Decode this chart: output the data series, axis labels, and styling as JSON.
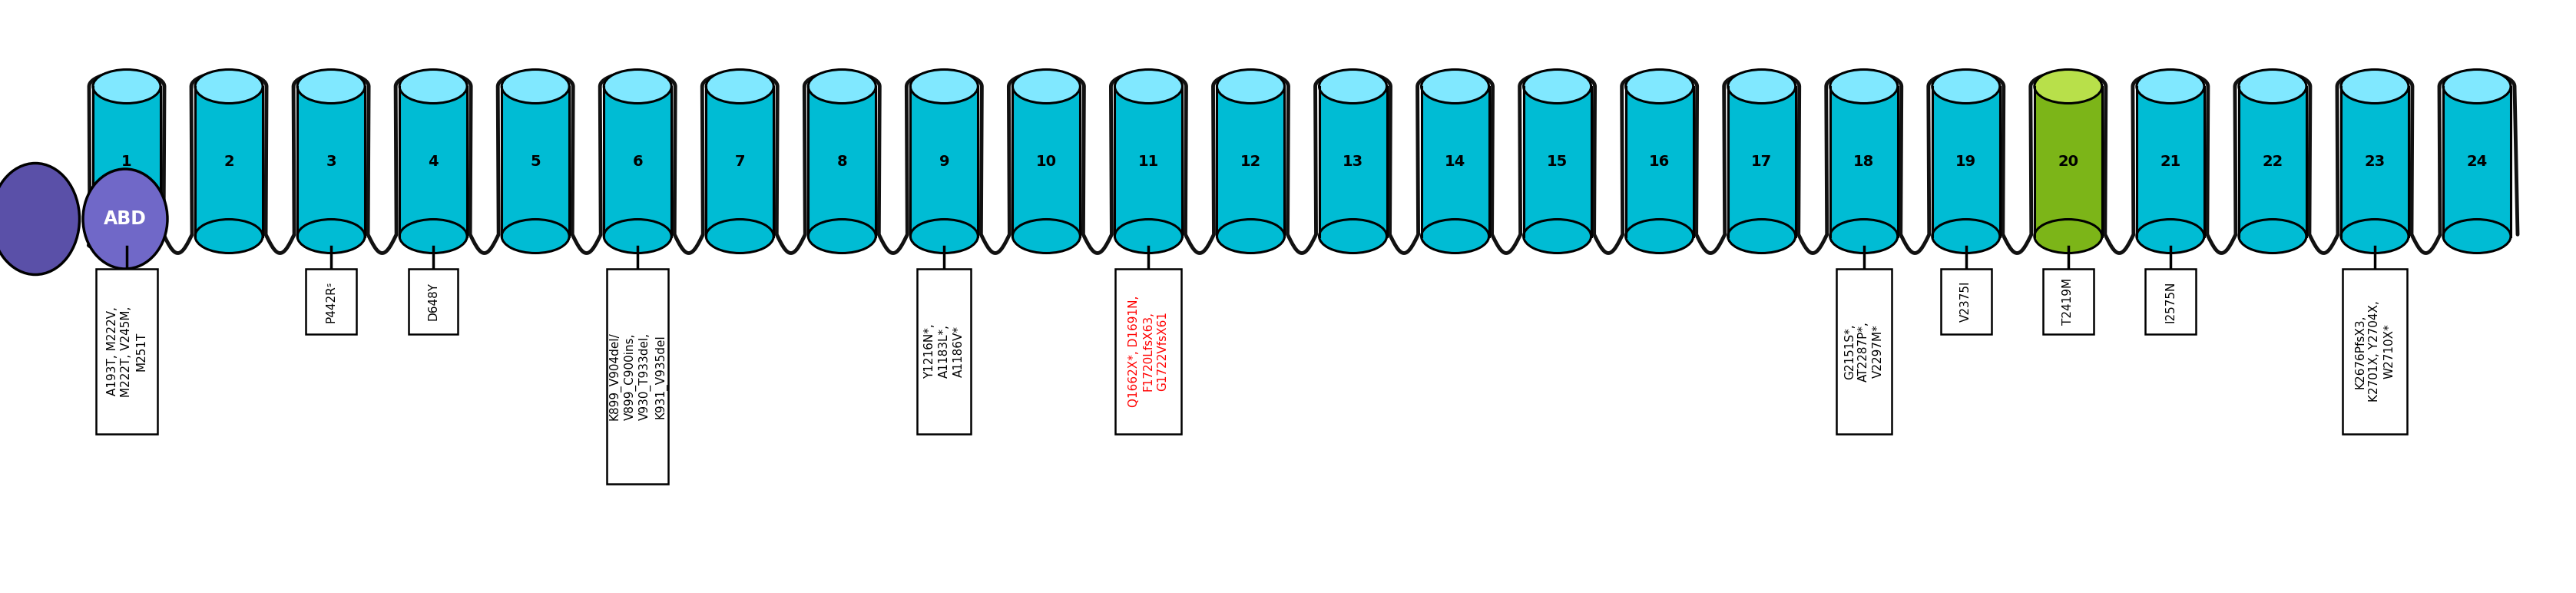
{
  "bg_color": "#ffffff",
  "n_cylinders": 24,
  "special_cylinder": 20,
  "labels": [
    {
      "cylinder": 1,
      "text": "A193T, M222V,\nM222T, V245M,\nM251T",
      "color": "#000000"
    },
    {
      "cylinder": 3,
      "text": "P442Rˢ",
      "color": "#000000"
    },
    {
      "cylinder": 4,
      "text": "D648Y",
      "color": "#000000"
    },
    {
      "cylinder": 6,
      "text": "K899_V904del/\nV899_C900ins,\nV930_T933del,\nK931_V935del",
      "color": "#000000"
    },
    {
      "cylinder": 9,
      "text": "Y1216N*,\nA1183L*,\nA1186V*",
      "color": "#000000"
    },
    {
      "cylinder": 11,
      "text": "Q1662X*, D1691N,\nF1720LfsX63,\nG1722VfsX61",
      "color": "#ff0000"
    },
    {
      "cylinder": 18,
      "text": "G2151S*,\nAT2287P*,\nV2297M*",
      "color": "#000000"
    },
    {
      "cylinder": 19,
      "text": "V2375I",
      "color": "#000000"
    },
    {
      "cylinder": 20,
      "text": "T2419M",
      "color": "#000000"
    },
    {
      "cylinder": 21,
      "text": "I2575N",
      "color": "#000000"
    },
    {
      "cylinder": 23,
      "text": "K2676PfsX3,\nK2701X, Y2704X,\nW2710X*",
      "color": "#000000"
    }
  ],
  "abd_color1": "#5a50a0",
  "abd_color2": "#7068c8",
  "cyl_color_face": "#00bcd4",
  "cyl_color_light": "#80e8ff",
  "cyl_color_dark": "#0090b0",
  "cyl_green_face": "#7cb518",
  "cyl_green_light": "#b8e04a",
  "cyl_green_dark": "#4a8000",
  "line_color": "#111111",
  "line_lw": 3.5
}
